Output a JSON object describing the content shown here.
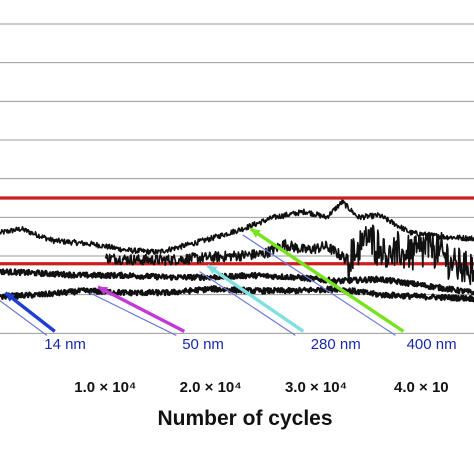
{
  "chart_data": {
    "type": "line",
    "title": "",
    "xlabel": "Number of cycles",
    "ylabel": "",
    "xlim": [
      0,
      45000
    ],
    "ylim": [
      0,
      9
    ],
    "grid": "horizontal",
    "x_ticks": [
      {
        "value": 10000,
        "label": "1.0 × 10⁴"
      },
      {
        "value": 20000,
        "label": "2.0 × 10⁴"
      },
      {
        "value": 30000,
        "label": "3.0 × 10⁴"
      },
      {
        "value": 40000,
        "label": "4.0 × 10"
      }
    ],
    "reference_lines": [
      {
        "y": 4.5,
        "color": "#cc1f1f"
      },
      {
        "y": 2.8,
        "color": "#cc1f1f"
      }
    ],
    "series": [
      {
        "color": "#111111",
        "x": [
          0,
          2000,
          5000,
          9000,
          12000,
          15000,
          18000,
          20000,
          23000,
          26000,
          29000,
          31000,
          32500,
          34000,
          36000,
          39000,
          42000,
          45000
        ],
        "values": [
          3.6,
          3.7,
          3.4,
          3.3,
          3.15,
          3.1,
          3.3,
          3.45,
          3.7,
          4.0,
          4.15,
          4.0,
          4.4,
          4.0,
          4.05,
          3.6,
          3.5,
          3.45
        ]
      },
      {
        "color": "#111111",
        "x": [
          10000,
          13000,
          16000,
          19000,
          22000,
          25000,
          27000,
          29000,
          31000,
          33000,
          35000,
          37000,
          39000,
          41000,
          43000,
          45000
        ],
        "values": [
          2.95,
          2.9,
          2.9,
          2.95,
          3.0,
          3.05,
          3.3,
          3.15,
          3.25,
          2.9,
          3.5,
          3.05,
          3.1,
          3.25,
          2.8,
          2.7
        ]
      },
      {
        "color": "#111111",
        "x": [
          0,
          4000,
          8000,
          12000,
          16000,
          20000,
          24000,
          28000,
          32000,
          36000,
          40000,
          45000
        ],
        "values": [
          2.6,
          2.55,
          2.5,
          2.5,
          2.45,
          2.45,
          2.5,
          2.45,
          2.35,
          2.4,
          2.25,
          2.05
        ]
      },
      {
        "color": "#111111",
        "x": [
          0,
          4000,
          8000,
          12000,
          16000,
          20000,
          24000,
          28000,
          32000,
          36000,
          40000,
          45000
        ],
        "values": [
          1.95,
          2.0,
          2.1,
          2.05,
          2.05,
          2.15,
          2.1,
          2.1,
          2.15,
          2.0,
          1.95,
          1.9
        ]
      }
    ],
    "annotations": [
      {
        "label": "14 nm",
        "color": "#1f3fd0",
        "arrow_x": [
          500,
          5200
        ],
        "arrow_y": [
          2.05,
          1.05
        ],
        "text_x": 4200,
        "text_y": 0.6
      },
      {
        "label": "50 nm",
        "color": "#c23ad6",
        "arrow_x": [
          9300,
          17500
        ],
        "arrow_y": [
          2.2,
          1.05
        ],
        "text_x": 17300,
        "text_y": 0.6
      },
      {
        "label": "280 nm",
        "color": "#7fe0e0",
        "arrow_x": [
          19700,
          28800
        ],
        "arrow_y": [
          2.75,
          1.05
        ],
        "text_x": 29500,
        "text_y": 0.6
      },
      {
        "label": "400 nm",
        "color": "#77e31f",
        "arrow_x": [
          23800,
          38300
        ],
        "arrow_y": [
          3.7,
          1.05
        ],
        "text_x": 38600,
        "text_y": 0.6
      }
    ]
  }
}
